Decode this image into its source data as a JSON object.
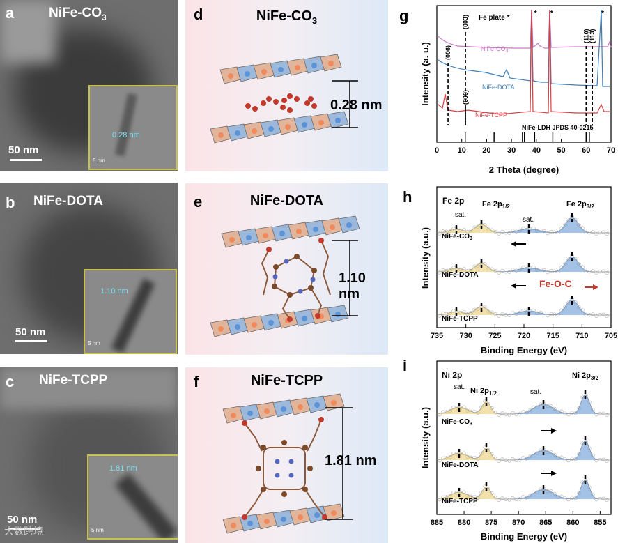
{
  "panels": {
    "a": {
      "label": "a",
      "title": "NiFe-CO",
      "title_sub": "3",
      "scalebar": "50 nm",
      "inset_scalebar": "5 nm",
      "inset_spacing": "0.28  nm"
    },
    "b": {
      "label": "b",
      "title": "NiFe-DOTA",
      "scalebar": "50 nm",
      "inset_scalebar": "5 nm",
      "inset_spacing": "1.10 nm"
    },
    "c": {
      "label": "c",
      "title": "NiFe-TCPP",
      "scalebar": "50 nm",
      "inset_scalebar": "5 nm",
      "inset_spacing": "1.81 nm"
    },
    "d": {
      "label": "d",
      "title": "NiFe-CO",
      "title_sub": "3",
      "spacing": "0.28 nm"
    },
    "e": {
      "label": "e",
      "title": "NiFe-DOTA",
      "spacing": "1.10 nm"
    },
    "f": {
      "label": "f",
      "title": "NiFe-TCPP",
      "spacing": "1.81 nm"
    },
    "g": {
      "label": "g",
      "legend_fe": "Fe plate *"
    },
    "h": {
      "label": "h"
    },
    "i": {
      "label": "i"
    }
  },
  "watermark": "大数跨境",
  "colors": {
    "co3": "#c77ac4",
    "dota": "#3f7fb8",
    "tcpp": "#d94046",
    "fit_blue": "#5a8fcf",
    "fit_yellow": "#e8c866",
    "fit_red": "#e07a80"
  },
  "chart_data": [
    {
      "id": "g",
      "type": "line",
      "title": "",
      "xlabel": "2 Theta (degree)",
      "ylabel": "Intensity (a. u.)",
      "xlim": [
        0,
        70
      ],
      "xticks": [
        0,
        10,
        20,
        30,
        40,
        50,
        60,
        70
      ],
      "series": [
        {
          "name": "NiFe-CO3",
          "label": "NiFe-CO",
          "label_sub": "3",
          "offset": 3
        },
        {
          "name": "NiFe-DOTA",
          "label": "NiFe-DOTA",
          "offset": 2
        },
        {
          "name": "NiFe-TCPP",
          "label": "NiFe-TCPP",
          "offset": 1
        }
      ],
      "annotations": [
        {
          "text": "(003)",
          "x": 11.5
        },
        {
          "text": "(006)",
          "x": 4.5
        },
        {
          "text": "(009)",
          "x": 11.5
        },
        {
          "text": "(110)",
          "x": 60
        },
        {
          "text": "(113)",
          "x": 62.5
        },
        {
          "text": "*",
          "x": 38
        },
        {
          "text": "*",
          "x": 44.5
        },
        {
          "text": "*",
          "x": 65
        }
      ],
      "reference": {
        "label": "NiFe-LDH JPDS 40-0215",
        "positions": [
          11.4,
          23,
          34.4,
          35.2,
          39.3,
          46.6,
          60,
          61.3
        ]
      }
    },
    {
      "id": "h",
      "type": "line",
      "xlabel": "Binding Energy (eV)",
      "ylabel": "Intensity (a.u.)",
      "xlim": [
        735,
        705
      ],
      "xticks": [
        735,
        730,
        725,
        720,
        715,
        710,
        705
      ],
      "region": "Fe 2p",
      "peaks": [
        {
          "label": "Fe 2p",
          "sub": "1/2",
          "x": 724.5
        },
        {
          "label": "Fe 2p",
          "sub": "3/2",
          "x": 711.3
        }
      ],
      "sat_labels": [
        "sat.",
        "sat."
      ],
      "series": [
        {
          "name": "NiFe-CO3",
          "label": "NiFe-CO",
          "label_sub": "3"
        },
        {
          "name": "NiFe-DOTA",
          "label": "NiFe-DOTA"
        },
        {
          "name": "NiFe-TCPP",
          "label": "NiFe-TCPP"
        }
      ],
      "feoc_label": "Fe-O-C"
    },
    {
      "id": "i",
      "type": "line",
      "xlabel": "Binding Energy (eV)",
      "ylabel": "Intensity (a.u.)",
      "xlim": [
        885,
        853
      ],
      "xticks": [
        885,
        880,
        875,
        870,
        865,
        860,
        855
      ],
      "region": "Ni 2p",
      "peaks": [
        {
          "label": "Ni 2p",
          "sub": "1/2",
          "x": 873.8
        },
        {
          "label": "Ni 2p",
          "sub": "3/2",
          "x": 856.2
        }
      ],
      "sat_labels": [
        "sat.",
        "sat."
      ],
      "series": [
        {
          "name": "NiFe-CO3",
          "label": "NiFe-CO",
          "label_sub": "3"
        },
        {
          "name": "NiFe-DOTA",
          "label": "NiFe-DOTA"
        },
        {
          "name": "NiFe-TCPP",
          "label": "NiFe-TCPP"
        }
      ]
    }
  ]
}
